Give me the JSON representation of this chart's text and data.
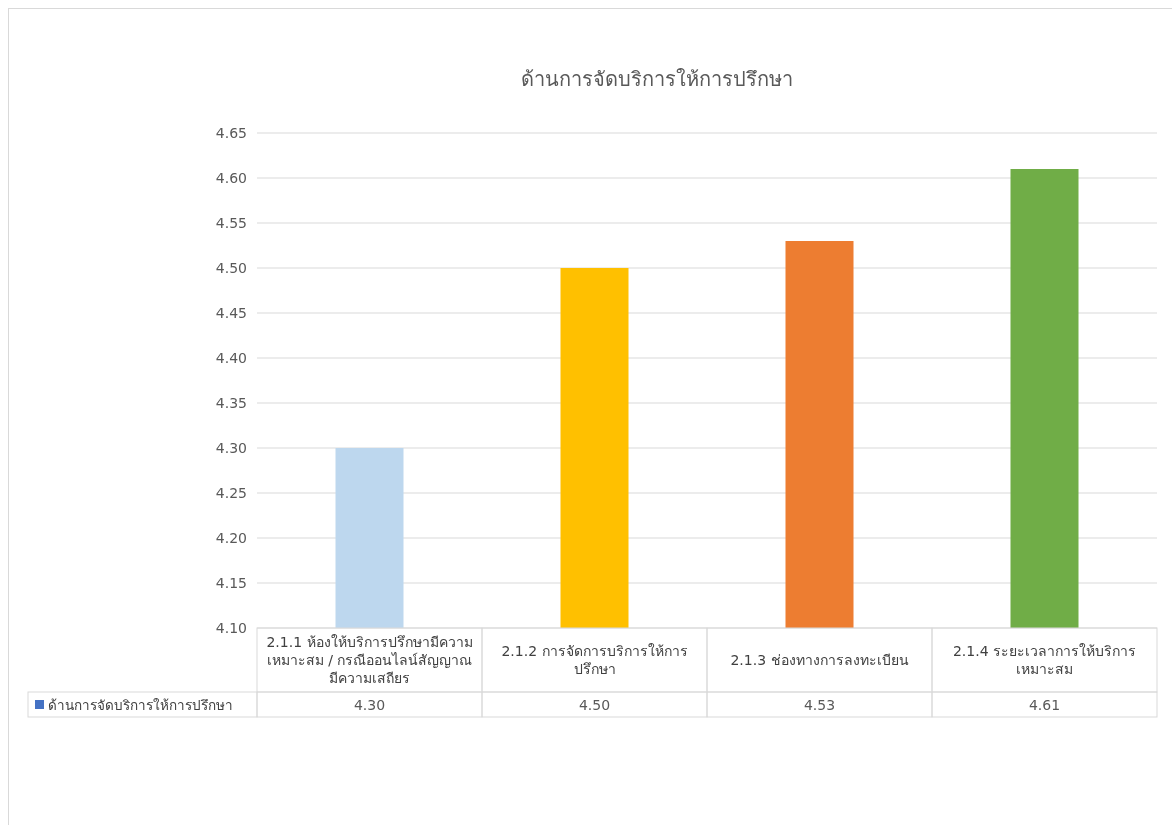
{
  "chart_data": {
    "type": "bar",
    "title": "ด้านการจัดบริการให้การปรึกษา",
    "categories": [
      "2.1.1 ห้องให้บริการปรึกษามีความเหมาะสม / กรณีออนไลน์สัญญาณมีความเสถียร",
      "2.1.2 การจัดการบริการให้การปรึกษา",
      "2.1.3 ช่องทางการลงทะเบียน",
      "2.1.4 ระยะเวลาการให้บริการเหมาะสม"
    ],
    "series": [
      {
        "name": "ด้านการจัดบริการให้การปรึกษา",
        "color": "#4472c4",
        "colors": [
          "#bdd7ee",
          "#ffc000",
          "#ed7d31",
          "#70ad47"
        ],
        "values": [
          4.3,
          4.5,
          4.53,
          4.61
        ],
        "value_labels": [
          "4.30",
          "4.50",
          "4.53",
          "4.61"
        ]
      }
    ],
    "ylim": [
      4.1,
      4.65
    ],
    "yticks": [
      {
        "value": 4.1,
        "label": "4.10"
      },
      {
        "value": 4.15,
        "label": "4.15"
      },
      {
        "value": 4.2,
        "label": "4.20"
      },
      {
        "value": 4.25,
        "label": "4.25"
      },
      {
        "value": 4.3,
        "label": "4.30"
      },
      {
        "value": 4.35,
        "label": "4.35"
      },
      {
        "value": 4.4,
        "label": "4.40"
      },
      {
        "value": 4.45,
        "label": "4.45"
      },
      {
        "value": 4.5,
        "label": "4.50"
      },
      {
        "value": 4.55,
        "label": "4.55"
      },
      {
        "value": 4.6,
        "label": "4.60"
      },
      {
        "value": 4.65,
        "label": "4.65"
      }
    ],
    "grid": "y",
    "legend": "bottom left"
  }
}
